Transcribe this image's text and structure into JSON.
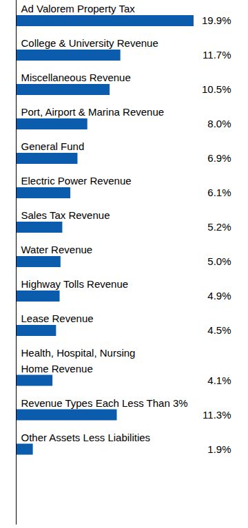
{
  "chart_data": {
    "type": "bar",
    "orientation": "horizontal",
    "categories": [
      "Ad Valorem Property Tax",
      "College & University Revenue",
      "Miscellaneous Revenue",
      "Port, Airport & Marina Revenue",
      "General Fund",
      "Electric Power Revenue",
      "Sales Tax Revenue",
      "Water Revenue",
      "Highway Tolls Revenue",
      "Lease Revenue",
      "Health, Hospital, Nursing\nHome Revenue",
      "Revenue Types Each Less Than 3%",
      "Other Assets Less Liabilities"
    ],
    "values": [
      19.9,
      11.7,
      10.5,
      8.0,
      6.9,
      6.1,
      5.2,
      5.0,
      4.9,
      4.5,
      4.1,
      11.3,
      1.9
    ],
    "value_labels": [
      "19.9%",
      "11.7%",
      "10.5%",
      "8.0%",
      "6.9%",
      "6.1%",
      "5.2%",
      "5.0%",
      "4.9%",
      "4.5%",
      "4.1%",
      "11.3%",
      "1.9%"
    ],
    "color": "#0b5cad",
    "data_labels": true,
    "tick_labels": false
  }
}
